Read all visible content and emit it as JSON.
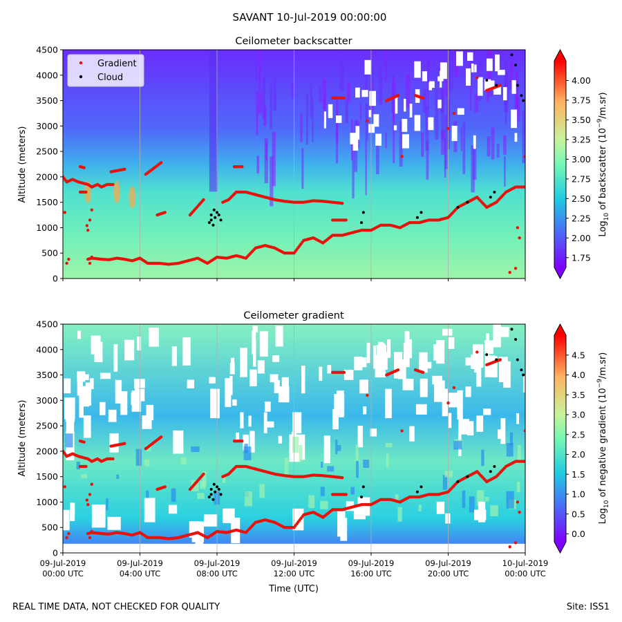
{
  "suptitle": "SAVANT 10-Jul-2019 00:00:00",
  "footer_left": "REAL TIME DATA, NOT CHECKED FOR QUALITY",
  "footer_right": "Site: ISS1",
  "colors": {
    "gradient_marker": "#e8120a",
    "cloud_marker": "#000000",
    "colormap": [
      "#7f00ff",
      "#4b6cf9",
      "#1ecbe1",
      "#76f8b4",
      "#c8f39a",
      "#ffb360",
      "#ff0000"
    ]
  },
  "chart_data": [
    {
      "type": "heatmap",
      "title": "Ceilometer backscatter",
      "ylabel": "Altitude (meters)",
      "xlabel": "",
      "ylim": [
        0,
        4500
      ],
      "yticks": [
        0,
        500,
        1000,
        1500,
        2000,
        2500,
        3000,
        3500,
        4000,
        4500
      ],
      "xlim_hours": [
        0,
        24
      ],
      "xticks_hours": [
        0,
        4,
        8,
        12,
        16,
        20,
        24
      ],
      "xtick_labels_shown": false,
      "grid": "vertical",
      "legend": {
        "placement": "top-left",
        "entries": [
          "Gradient",
          "Cloud"
        ]
      },
      "colorbar": {
        "label": "Log10 of backscatter (10^-9/m.sr)",
        "label_main": "Log",
        "label_sub": "10",
        "label_mid": " of backscatter (10",
        "label_sup": "−9",
        "label_end": "/m.sr)",
        "min": 1.625,
        "max": 4.25,
        "ticks": [
          "1.75",
          "2.00",
          "2.25",
          "2.50",
          "2.75",
          "3.00",
          "3.25",
          "3.50",
          "3.75",
          "4.00"
        ],
        "tick_values": [
          1.75,
          2.0,
          2.25,
          2.5,
          2.75,
          3.0,
          3.25,
          3.5,
          3.75,
          4.0
        ]
      }
    },
    {
      "type": "heatmap",
      "title": "Ceilometer gradient",
      "ylabel": "Altitude (meters)",
      "xlabel": "Time (UTC)",
      "ylim": [
        0,
        4500
      ],
      "yticks": [
        0,
        500,
        1000,
        1500,
        2000,
        2500,
        3000,
        3500,
        4000,
        4500
      ],
      "xlim_hours": [
        0,
        24
      ],
      "xticks_hours": [
        0,
        4,
        8,
        12,
        16,
        20,
        24
      ],
      "xtick_labels": [
        [
          "09-Jul-2019",
          "00:00 UTC"
        ],
        [
          "09-Jul-2019",
          "04:00 UTC"
        ],
        [
          "09-Jul-2019",
          "08:00 UTC"
        ],
        [
          "09-Jul-2019",
          "12:00 UTC"
        ],
        [
          "09-Jul-2019",
          "16:00 UTC"
        ],
        [
          "09-Jul-2019",
          "20:00 UTC"
        ],
        [
          "10-Jul-2019",
          "00:00 UTC"
        ]
      ],
      "grid": "vertical",
      "colorbar": {
        "label": "Log10 of negative gradient (10^-9/m.sr)",
        "label_main": "Log",
        "label_sub": "10",
        "label_mid": " of negative gradient (10",
        "label_sup": "−9",
        "label_end": "/m.sr)",
        "min": -0.2,
        "max": 5.0,
        "ticks": [
          "0.0",
          "0.5",
          "1.0",
          "1.5",
          "2.0",
          "2.5",
          "3.0",
          "3.5",
          "4.0",
          "4.5"
        ],
        "tick_values": [
          0.0,
          0.5,
          1.0,
          1.5,
          2.0,
          2.5,
          3.0,
          3.5,
          4.0,
          4.5
        ]
      }
    }
  ],
  "series_gradient": {
    "name": "Gradient",
    "lower_layer": [
      [
        0.9,
        1700
      ],
      [
        1.2,
        1700
      ],
      [
        1.3,
        380
      ],
      [
        1.5,
        400
      ],
      [
        2.0,
        380
      ],
      [
        2.4,
        370
      ],
      [
        2.8,
        400
      ],
      [
        3.2,
        380
      ],
      [
        3.6,
        350
      ],
      [
        4.0,
        400
      ],
      [
        4.4,
        300
      ],
      [
        5.0,
        300
      ],
      [
        5.5,
        280
      ],
      [
        6.0,
        300
      ],
      [
        6.5,
        350
      ],
      [
        7.0,
        400
      ],
      [
        7.5,
        300
      ],
      [
        8.0,
        420
      ],
      [
        8.5,
        400
      ],
      [
        9.0,
        450
      ],
      [
        9.5,
        400
      ],
      [
        10.0,
        600
      ],
      [
        10.5,
        650
      ],
      [
        11.0,
        600
      ],
      [
        11.5,
        500
      ],
      [
        12.0,
        500
      ],
      [
        12.5,
        750
      ],
      [
        13.0,
        800
      ],
      [
        13.5,
        700
      ],
      [
        14.0,
        850
      ],
      [
        14.5,
        850
      ],
      [
        15.0,
        900
      ],
      [
        15.5,
        950
      ],
      [
        16.0,
        950
      ],
      [
        16.5,
        1050
      ],
      [
        17.0,
        1050
      ],
      [
        17.5,
        1000
      ],
      [
        18.0,
        1100
      ],
      [
        18.5,
        1100
      ],
      [
        19.0,
        1150
      ],
      [
        19.5,
        1150
      ],
      [
        20.0,
        1200
      ],
      [
        20.5,
        1400
      ],
      [
        21.0,
        1500
      ],
      [
        21.5,
        1600
      ],
      [
        22.0,
        1400
      ],
      [
        22.5,
        1500
      ],
      [
        23.0,
        1700
      ],
      [
        23.5,
        1800
      ],
      [
        24.0,
        1800
      ]
    ],
    "upper_layer": [
      [
        8.3,
        1500
      ],
      [
        8.6,
        1550
      ],
      [
        9.0,
        1700
      ],
      [
        9.5,
        1700
      ],
      [
        10.0,
        1650
      ],
      [
        10.5,
        1600
      ],
      [
        11.0,
        1550
      ],
      [
        11.5,
        1520
      ],
      [
        12.0,
        1500
      ],
      [
        12.5,
        1500
      ],
      [
        13.0,
        1530
      ],
      [
        13.5,
        1520
      ],
      [
        14.0,
        1500
      ],
      [
        14.5,
        1480
      ]
    ],
    "morning_layer": [
      [
        0.0,
        2000
      ],
      [
        0.2,
        1900
      ],
      [
        0.5,
        1950
      ],
      [
        0.8,
        1900
      ],
      [
        1.0,
        1880
      ],
      [
        1.3,
        1850
      ],
      [
        1.5,
        1800
      ],
      [
        1.8,
        1850
      ],
      [
        2.0,
        1800
      ],
      [
        2.3,
        1850
      ],
      [
        2.6,
        1850
      ]
    ],
    "segments": [
      [
        [
          0.9,
          2200
        ],
        [
          1.1,
          2180
        ]
      ],
      [
        [
          2.5,
          2100
        ],
        [
          3.2,
          2150
        ]
      ],
      [
        [
          4.3,
          2050
        ],
        [
          5.1,
          2280
        ]
      ],
      [
        [
          4.9,
          1250
        ],
        [
          5.3,
          1300
        ]
      ],
      [
        [
          6.6,
          1250
        ],
        [
          7.3,
          1550
        ]
      ],
      [
        [
          8.9,
          2200
        ],
        [
          9.3,
          2200
        ]
      ],
      [
        [
          14.0,
          1150
        ],
        [
          14.7,
          1150
        ]
      ],
      [
        [
          16.8,
          3500
        ],
        [
          17.4,
          3600
        ]
      ],
      [
        [
          14.0,
          3550
        ],
        [
          14.6,
          3550
        ]
      ],
      [
        [
          18.3,
          3600
        ],
        [
          18.7,
          3550
        ]
      ],
      [
        [
          22.0,
          3700
        ],
        [
          22.7,
          3800
        ]
      ]
    ],
    "scatter": [
      [
        0.1,
        1300
      ],
      [
        0.2,
        300
      ],
      [
        0.3,
        380
      ],
      [
        1.3,
        950
      ],
      [
        1.4,
        1150
      ],
      [
        1.5,
        1350
      ],
      [
        1.4,
        300
      ],
      [
        1.5,
        420
      ],
      [
        17.6,
        2400
      ],
      [
        20.0,
        2950
      ],
      [
        20.3,
        3250
      ],
      [
        21.5,
        3950
      ],
      [
        23.2,
        120
      ],
      [
        23.5,
        200
      ],
      [
        23.6,
        1000
      ],
      [
        23.7,
        800
      ],
      [
        24.0,
        2400
      ],
      [
        15.8,
        3100
      ]
    ]
  },
  "series_cloud": {
    "name": "Cloud",
    "points": [
      [
        7.6,
        1100
      ],
      [
        7.7,
        1150
      ],
      [
        7.8,
        1050
      ],
      [
        7.9,
        1200
      ],
      [
        8.0,
        1300
      ],
      [
        8.1,
        1250
      ],
      [
        7.7,
        1250
      ],
      [
        7.85,
        1350
      ],
      [
        8.2,
        1150
      ],
      [
        15.5,
        1100
      ],
      [
        15.6,
        1300
      ],
      [
        18.4,
        1200
      ],
      [
        18.6,
        1300
      ],
      [
        20.5,
        1400
      ],
      [
        21.0,
        1500
      ],
      [
        22.2,
        1600
      ],
      [
        22.4,
        1700
      ],
      [
        22.0,
        3900
      ],
      [
        22.5,
        3800
      ],
      [
        23.3,
        4400
      ],
      [
        23.5,
        4200
      ],
      [
        23.6,
        3800
      ],
      [
        23.8,
        3600
      ],
      [
        23.9,
        3500
      ]
    ]
  }
}
